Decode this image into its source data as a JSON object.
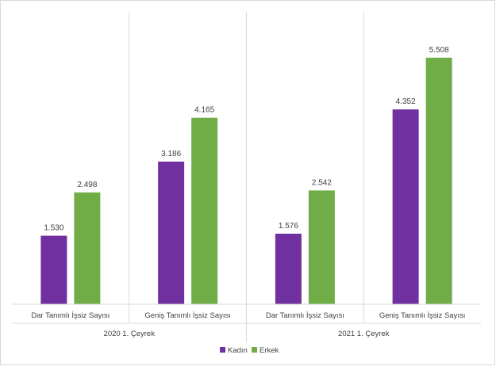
{
  "chart_data": {
    "type": "bar",
    "groups": [
      "2020 1. Çeyrek",
      "2021 1. Çeyrek"
    ],
    "categories": [
      "Dar Tanımlı İşsiz Sayısı",
      "Geniş Tanımlı İşsiz Sayısı",
      "Dar Tanımlı İşsiz Sayısı",
      "Geniş Tanımlı İşsiz Sayısı"
    ],
    "series": [
      {
        "name": "Kadın",
        "color": "#7030a0",
        "values": [
          1530,
          3186,
          1576,
          4352
        ],
        "labels": [
          "1.530",
          "3.186",
          "1.576",
          "4.352"
        ]
      },
      {
        "name": "Erkek",
        "color": "#70ad47",
        "values": [
          2498,
          4165,
          2542,
          5508
        ],
        "labels": [
          "2.498",
          "4.165",
          "2.542",
          "5.508"
        ]
      }
    ],
    "ylim": [
      0,
      6000
    ],
    "grid": false,
    "legend_position": "bottom"
  }
}
